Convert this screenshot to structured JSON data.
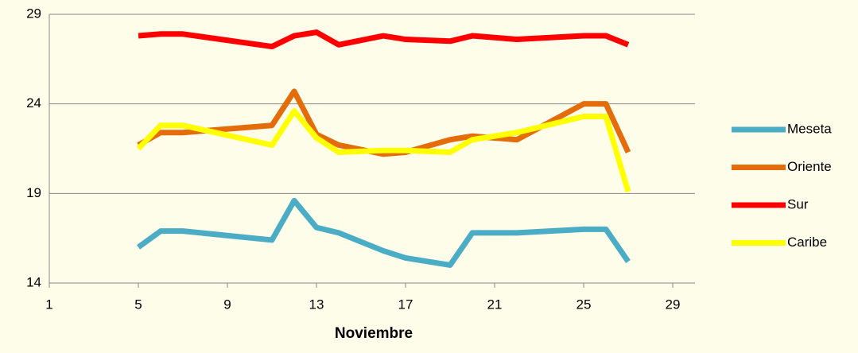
{
  "chart_data": {
    "type": "line",
    "x_label": "Noviembre",
    "x": [
      5,
      6,
      7,
      11,
      12,
      13,
      14,
      16,
      17,
      19,
      20,
      22,
      25,
      26,
      27
    ],
    "series": [
      {
        "name": "Meseta",
        "color": "#4bacc6",
        "values": [
          16.0,
          16.9,
          16.9,
          16.4,
          18.6,
          17.1,
          16.8,
          15.8,
          15.4,
          15.0,
          16.8,
          16.8,
          17.0,
          17.0,
          15.2
        ]
      },
      {
        "name": "Oriente",
        "color": "#e46c0a",
        "values": [
          21.7,
          22.4,
          22.4,
          22.8,
          24.7,
          22.3,
          21.7,
          21.2,
          21.3,
          22.0,
          22.2,
          22.0,
          24.0,
          24.0,
          21.3
        ]
      },
      {
        "name": "Sur",
        "color": "#ff0000",
        "values": [
          27.8,
          27.9,
          27.9,
          27.2,
          27.8,
          28.0,
          27.3,
          27.8,
          27.6,
          27.5,
          27.8,
          27.6,
          27.8,
          27.8,
          27.3
        ]
      },
      {
        "name": "Caribe",
        "color": "#ffff00",
        "values": [
          21.5,
          22.8,
          22.8,
          21.7,
          23.6,
          22.1,
          21.3,
          21.4,
          21.4,
          21.3,
          22.0,
          22.4,
          23.3,
          23.3,
          19.1
        ]
      }
    ],
    "xlim": [
      1,
      30
    ],
    "xticks": [
      1,
      5,
      9,
      13,
      17,
      21,
      25,
      29
    ],
    "ylim": [
      14,
      29
    ],
    "yticks": [
      14,
      19,
      24,
      29
    ],
    "grid": true,
    "legend": "right"
  }
}
